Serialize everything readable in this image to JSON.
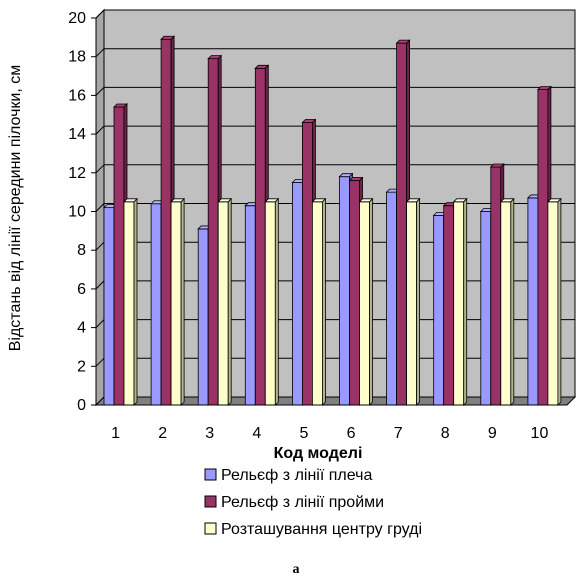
{
  "chart_data": {
    "type": "bar",
    "style": "3d-clustered-column",
    "title": "",
    "xlabel": "Код моделі",
    "ylabel": "Відстань від лінії середини пілочки, см",
    "ylim": [
      0,
      20
    ],
    "ytick_step": 2,
    "grid": true,
    "legend_position": "bottom",
    "categories": [
      "1",
      "2",
      "3",
      "4",
      "5",
      "6",
      "7",
      "8",
      "9",
      "10"
    ],
    "series": [
      {
        "name": "Рельєф з лінії плеча",
        "color": "#9999ff",
        "values": [
          10.2,
          10.4,
          9.1,
          10.3,
          11.5,
          11.8,
          11.0,
          9.8,
          10.0,
          10.7
        ]
      },
      {
        "name": "Рельєф з лінії пройми",
        "color": "#993366",
        "values": [
          15.4,
          18.9,
          17.9,
          17.4,
          14.6,
          11.6,
          18.7,
          10.3,
          12.3,
          16.3
        ]
      },
      {
        "name": "Розташування центру груді",
        "color": "#ffffcc",
        "values": [
          10.5,
          10.5,
          10.5,
          10.5,
          10.5,
          10.5,
          10.5,
          10.5,
          10.5,
          10.5
        ]
      }
    ],
    "caption": "а"
  }
}
